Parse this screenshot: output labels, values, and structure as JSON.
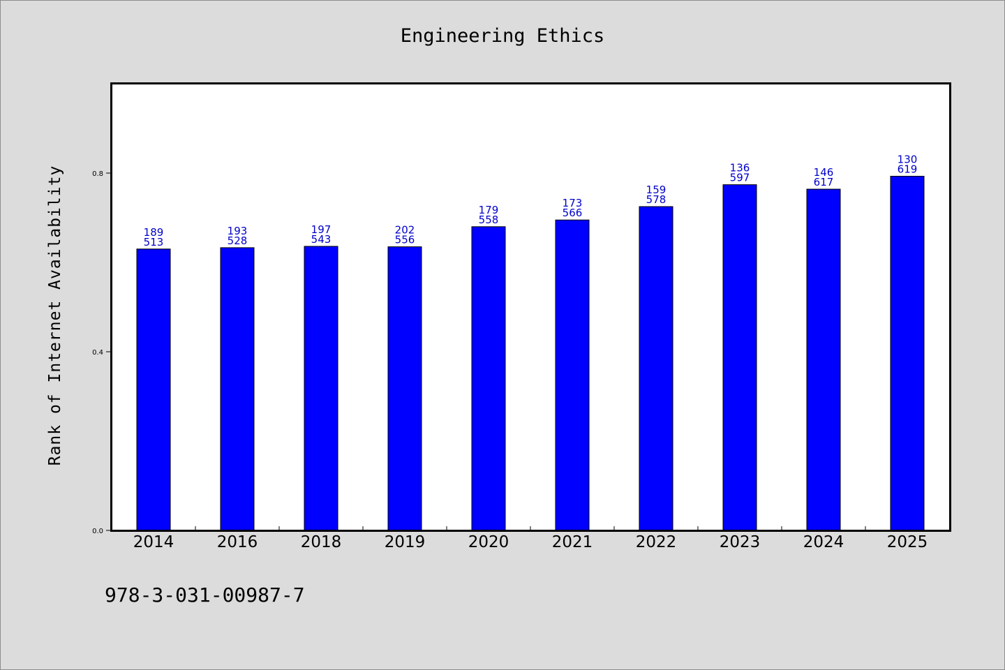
{
  "chart_data": {
    "type": "bar",
    "title": "Engineering Ethics",
    "xlabel": "",
    "ylabel": "Rank of Internet Availability",
    "categories": [
      "2014",
      "2016",
      "2018",
      "2019",
      "2020",
      "2021",
      "2022",
      "2023",
      "2024",
      "2025"
    ],
    "series": [
      {
        "values": [
          0.63,
          0.633,
          0.636,
          0.635,
          0.68,
          0.695,
          0.725,
          0.774,
          0.764,
          0.793
        ],
        "color": "#0000ff"
      }
    ],
    "data_labels": {
      "top": [
        "189",
        "193",
        "197",
        "202",
        "179",
        "173",
        "159",
        "136",
        "146",
        "130"
      ],
      "bottom": [
        "513",
        "528",
        "543",
        "556",
        "558",
        "566",
        "578",
        "597",
        "617",
        "619"
      ],
      "color": "#0000cc"
    },
    "ylim": [
      0,
      1.0
    ],
    "yticks": [
      0.0,
      0.4,
      0.8
    ],
    "ytick_labels": [
      "0.0",
      "0.4",
      "0.8"
    ],
    "grid": false,
    "background": "#dcdcdc",
    "plot_background": "#ffffff"
  },
  "footer": {
    "isbn": "978-3-031-00987-7"
  }
}
